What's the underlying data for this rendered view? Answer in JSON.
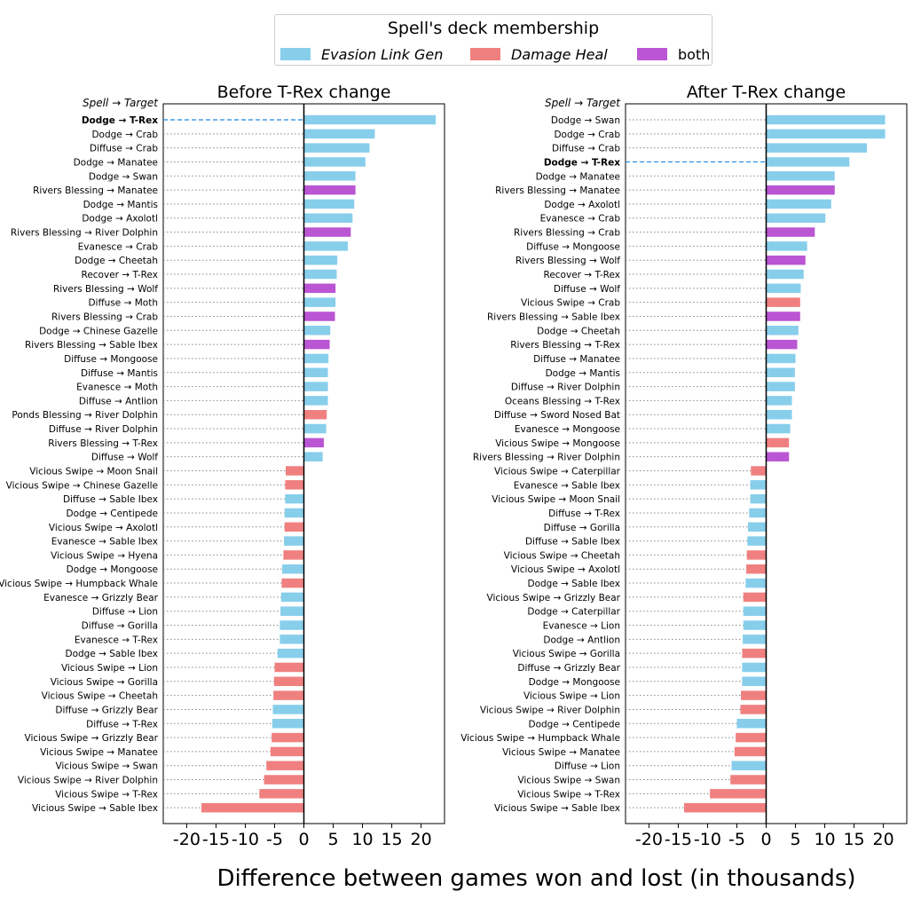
{
  "legend": {
    "title": "Spell's deck membership",
    "items": [
      {
        "label": "Evasion Link Gen",
        "color": "#87ceeb",
        "italic": true
      },
      {
        "label": "Damage Heal",
        "color": "#f08080",
        "italic": true
      },
      {
        "label": "both",
        "color": "#ba55d3",
        "italic": false
      }
    ]
  },
  "xlabel": "Difference between games won and lost (in thousands)",
  "chart_data": [
    {
      "type": "bar",
      "orientation": "horizontal",
      "title": "Before T-Rex change",
      "ylabel": "Spell → Target",
      "xlim": [
        -24,
        24
      ],
      "xticks": [
        -20,
        -15,
        -10,
        -5,
        0,
        5,
        10,
        15,
        20
      ],
      "xtick_labels": [
        "-20",
        "-15",
        "-10",
        "-5",
        "0",
        "5",
        "10",
        "15",
        "20"
      ],
      "highlight": "Dodge → T-Rex",
      "categories": [
        "Dodge → T-Rex",
        "Dodge → Crab",
        "Diffuse → Crab",
        "Dodge → Manatee",
        "Dodge → Swan",
        "Rivers Blessing → Manatee",
        "Dodge → Mantis",
        "Dodge → Axolotl",
        "Rivers Blessing → River Dolphin",
        "Evanesce → Crab",
        "Dodge → Cheetah",
        "Recover → T-Rex",
        "Rivers Blessing → Wolf",
        "Diffuse → Moth",
        "Rivers Blessing → Crab",
        "Dodge → Chinese Gazelle",
        "Rivers Blessing → Sable Ibex",
        "Diffuse → Mongoose",
        "Diffuse → Mantis",
        "Evanesce → Moth",
        "Diffuse → Antlion",
        "Ponds Blessing → River Dolphin",
        "Diffuse → River Dolphin",
        "Rivers Blessing → T-Rex",
        "Diffuse → Wolf",
        "Vicious Swipe → Moon Snail",
        "Vicious Swipe → Chinese Gazelle",
        "Diffuse → Sable Ibex",
        "Dodge → Centipede",
        "Vicious Swipe → Axolotl",
        "Evanesce → Sable Ibex",
        "Vicious Swipe → Hyena",
        "Dodge → Mongoose",
        "Vicious Swipe → Humpback Whale",
        "Evanesce → Grizzly Bear",
        "Diffuse → Lion",
        "Diffuse → Gorilla",
        "Evanesce → T-Rex",
        "Dodge → Sable Ibex",
        "Vicious Swipe → Lion",
        "Vicious Swipe → Gorilla",
        "Vicious Swipe → Cheetah",
        "Diffuse → Grizzly Bear",
        "Diffuse → T-Rex",
        "Vicious Swipe → Grizzly Bear",
        "Vicious Swipe → Manatee",
        "Vicious Swipe → Swan",
        "Vicious Swipe → River Dolphin",
        "Vicious Swipe → T-Rex",
        "Vicious Swipe → Sable Ibex"
      ],
      "values": [
        22.5,
        12.1,
        11.2,
        10.5,
        8.8,
        8.8,
        8.6,
        8.3,
        8.0,
        7.5,
        5.7,
        5.6,
        5.4,
        5.4,
        5.3,
        4.5,
        4.4,
        4.2,
        4.1,
        4.1,
        4.1,
        3.9,
        3.8,
        3.4,
        3.2,
        -3.1,
        -3.2,
        -3.2,
        -3.3,
        -3.3,
        -3.4,
        -3.5,
        -3.7,
        -3.8,
        -3.9,
        -4.0,
        -4.1,
        -4.1,
        -4.5,
        -5.0,
        -5.1,
        -5.2,
        -5.3,
        -5.4,
        -5.5,
        -5.7,
        -6.4,
        -6.8,
        -7.6,
        -17.5
      ],
      "groups": [
        "e",
        "e",
        "e",
        "e",
        "e",
        "b",
        "e",
        "e",
        "b",
        "e",
        "e",
        "e",
        "b",
        "e",
        "b",
        "e",
        "b",
        "e",
        "e",
        "e",
        "e",
        "d",
        "e",
        "b",
        "e",
        "d",
        "d",
        "e",
        "e",
        "d",
        "e",
        "d",
        "e",
        "d",
        "e",
        "e",
        "e",
        "e",
        "e",
        "d",
        "d",
        "d",
        "e",
        "e",
        "d",
        "d",
        "d",
        "d",
        "d",
        "d"
      ]
    },
    {
      "type": "bar",
      "orientation": "horizontal",
      "title": "After T-Rex change",
      "ylabel": "Spell → Target",
      "xlim": [
        -24,
        24
      ],
      "xticks": [
        -20,
        -15,
        -10,
        -5,
        0,
        5,
        10,
        15,
        20
      ],
      "xtick_labels": [
        "-20",
        "-15",
        "-10",
        "-5",
        "0",
        "5",
        "10",
        "15",
        "20"
      ],
      "highlight": "Dodge → T-Rex",
      "categories": [
        "Dodge → Swan",
        "Dodge → Crab",
        "Diffuse → Crab",
        "Dodge → T-Rex",
        "Dodge → Manatee",
        "Rivers Blessing → Manatee",
        "Dodge → Axolotl",
        "Evanesce → Crab",
        "Rivers Blessing → Crab",
        "Diffuse → Mongoose",
        "Rivers Blessing → Wolf",
        "Recover → T-Rex",
        "Diffuse → Wolf",
        "Vicious Swipe → Crab",
        "Rivers Blessing → Sable Ibex",
        "Dodge → Cheetah",
        "Rivers Blessing → T-Rex",
        "Diffuse → Manatee",
        "Dodge → Mantis",
        "Diffuse → River Dolphin",
        "Oceans Blessing → T-Rex",
        "Diffuse → Sword Nosed Bat",
        "Evanesce → Mongoose",
        "Vicious Swipe → Mongoose",
        "Rivers Blessing → River Dolphin",
        "Vicious Swipe → Caterpillar",
        "Evanesce → Sable Ibex",
        "Vicious Swipe → Moon Snail",
        "Diffuse → T-Rex",
        "Diffuse → Gorilla",
        "Diffuse → Sable Ibex",
        "Vicious Swipe → Cheetah",
        "Vicious Swipe → Axolotl",
        "Dodge → Sable Ibex",
        "Vicious Swipe → Grizzly Bear",
        "Dodge → Caterpillar",
        "Evanesce → Lion",
        "Dodge → Antlion",
        "Vicious Swipe → Gorilla",
        "Diffuse → Grizzly Bear",
        "Dodge → Mongoose",
        "Vicious Swipe → Lion",
        "Vicious Swipe → River Dolphin",
        "Dodge → Centipede",
        "Vicious Swipe → Humpback Whale",
        "Vicious Swipe → Manatee",
        "Diffuse → Lion",
        "Vicious Swipe → Swan",
        "Vicious Swipe → T-Rex",
        "Vicious Swipe → Sable Ibex"
      ],
      "values": [
        20.3,
        20.3,
        17.2,
        14.2,
        11.7,
        11.7,
        11.1,
        10.1,
        8.3,
        7.0,
        6.7,
        6.4,
        5.9,
        5.8,
        5.8,
        5.5,
        5.3,
        5.0,
        4.9,
        4.9,
        4.4,
        4.4,
        4.1,
        3.9,
        3.9,
        -2.6,
        -2.7,
        -2.7,
        -2.9,
        -3.1,
        -3.2,
        -3.3,
        -3.4,
        -3.5,
        -3.9,
        -3.9,
        -3.9,
        -4.0,
        -4.1,
        -4.1,
        -4.1,
        -4.3,
        -4.4,
        -5.0,
        -5.2,
        -5.4,
        -5.9,
        -6.1,
        -9.6,
        -14.0
      ],
      "groups": [
        "e",
        "e",
        "e",
        "e",
        "e",
        "b",
        "e",
        "e",
        "b",
        "e",
        "b",
        "e",
        "e",
        "d",
        "b",
        "e",
        "b",
        "e",
        "e",
        "e",
        "e",
        "e",
        "e",
        "d",
        "b",
        "d",
        "e",
        "e",
        "e",
        "e",
        "e",
        "d",
        "d",
        "e",
        "d",
        "e",
        "e",
        "e",
        "d",
        "e",
        "e",
        "d",
        "d",
        "e",
        "d",
        "d",
        "e",
        "d",
        "d",
        "d"
      ]
    }
  ]
}
